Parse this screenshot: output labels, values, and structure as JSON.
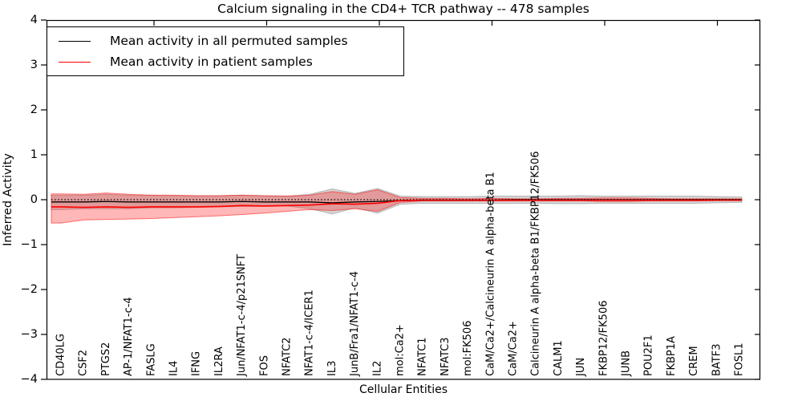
{
  "title": "Calcium signaling in the CD4+ TCR pathway -- 478 samples",
  "xlabel": "Cellular Entities",
  "ylabel": "Inferred Activity",
  "legend": [
    {
      "label": "Mean activity in all permuted samples",
      "color": "#000000"
    },
    {
      "label": "Mean activity in patient samples",
      "color": "#ff0000"
    }
  ],
  "y_tick_labels": [
    "4",
    "3",
    "2",
    "1",
    "0",
    "−1",
    "−2",
    "−3",
    "−4"
  ],
  "colors": {
    "permuted_line": "#000000",
    "patient_line": "#ff0000",
    "permuted_band": "rgba(160,160,160,0.45)",
    "patient_band": "rgba(255,30,30,0.32)",
    "axis": "#000000"
  },
  "chart_data": {
    "type": "line",
    "title": "Calcium signaling in the CD4+ TCR pathway -- 478 samples",
    "xlabel": "Cellular Entities",
    "ylabel": "Inferred Activity",
    "ylim": [
      -4,
      4
    ],
    "grid": false,
    "legend_position": "upper left",
    "reference_line": {
      "y": 0,
      "style": "dotted",
      "color": "#000000"
    },
    "categories": [
      "CD40LG",
      "CSF2",
      "PTGS2",
      "AP-1/NFAT1-c-4",
      "FASLG",
      "IL4",
      "IFNG",
      "IL2RA",
      "Jun/NFAT1-c-4/p21SNFT",
      "FOS",
      "NFATC2",
      "NFAT1-c-4/ICER1",
      "IL3",
      "JunB/Fra1/NFAT1-c-4",
      "IL2",
      "mol:Ca2+",
      "NFATC1",
      "NFATC3",
      "mol:FK506",
      "CaM/Ca2+/Calcineurin A alpha-beta B1",
      "CaM/Ca2+",
      "Calcineurin A alpha-beta B1/FKBP12/FK506",
      "CALM1",
      "JUN",
      "FKBP12/FK506",
      "JUNB",
      "POU2F1",
      "FKBP1A",
      "CREM",
      "BATF3",
      "FOSL1"
    ],
    "series": [
      {
        "name": "Mean activity in all permuted samples",
        "color": "#000000",
        "values": [
          -0.05,
          -0.05,
          -0.04,
          -0.05,
          -0.05,
          -0.05,
          -0.05,
          -0.05,
          -0.04,
          -0.05,
          -0.05,
          -0.05,
          -0.07,
          -0.05,
          -0.04,
          -0.02,
          -0.01,
          -0.01,
          -0.01,
          -0.01,
          0,
          0,
          0,
          0,
          0,
          0,
          0,
          0,
          0,
          0,
          0
        ]
      },
      {
        "name": "Mean activity in patient samples",
        "color": "#ff0000",
        "values": [
          -0.16,
          -0.17,
          -0.16,
          -0.17,
          -0.16,
          -0.16,
          -0.16,
          -0.15,
          -0.13,
          -0.14,
          -0.13,
          -0.12,
          -0.09,
          -0.1,
          -0.08,
          -0.02,
          -0.01,
          -0.01,
          -0.01,
          -0.01,
          -0.01,
          -0.01,
          -0.01,
          -0.01,
          -0.01,
          -0.01,
          -0.01,
          -0.01,
          -0.01,
          -0.01,
          -0.01
        ]
      }
    ],
    "bands": [
      {
        "name": "permuted-samples-range",
        "fill": "rgba(160,160,160,0.45)",
        "edge": "rgba(120,120,120,0.45)",
        "upper": [
          0.1,
          0.1,
          0.12,
          0.1,
          0.1,
          0.09,
          0.09,
          0.09,
          0.1,
          0.09,
          0.08,
          0.12,
          0.24,
          0.14,
          0.25,
          0.08,
          0.07,
          0.07,
          0.07,
          0.08,
          0.08,
          0.08,
          0.08,
          0.09,
          0.08,
          0.08,
          0.08,
          0.08,
          0.08,
          0.07,
          0.06
        ],
        "lower": [
          -0.22,
          -0.2,
          -0.2,
          -0.2,
          -0.18,
          -0.18,
          -0.17,
          -0.16,
          -0.15,
          -0.15,
          -0.14,
          -0.2,
          -0.32,
          -0.18,
          -0.3,
          -0.1,
          -0.08,
          -0.08,
          -0.08,
          -0.08,
          -0.08,
          -0.08,
          -0.09,
          -0.09,
          -0.08,
          -0.08,
          -0.08,
          -0.08,
          -0.08,
          -0.07,
          -0.06
        ]
      },
      {
        "name": "patient-samples-range",
        "fill": "rgba(255,30,30,0.32)",
        "edge": "rgba(255,0,0,0.5)",
        "upper": [
          0.13,
          0.12,
          0.15,
          0.12,
          0.1,
          0.1,
          0.09,
          0.09,
          0.1,
          0.09,
          0.08,
          0.1,
          0.18,
          0.12,
          0.22,
          0.05,
          0.03,
          0.03,
          0.02,
          0.03,
          0.02,
          0.02,
          0.03,
          0.03,
          0.04,
          0.04,
          0.03,
          0.02,
          0.02,
          0.02,
          0.02
        ],
        "lower": [
          -0.52,
          -0.45,
          -0.44,
          -0.43,
          -0.42,
          -0.4,
          -0.38,
          -0.36,
          -0.33,
          -0.3,
          -0.26,
          -0.22,
          -0.24,
          -0.2,
          -0.26,
          -0.06,
          -0.03,
          -0.03,
          -0.03,
          -0.03,
          -0.03,
          -0.03,
          -0.03,
          -0.03,
          -0.04,
          -0.04,
          -0.03,
          -0.03,
          -0.03,
          -0.02,
          -0.02
        ]
      }
    ]
  }
}
